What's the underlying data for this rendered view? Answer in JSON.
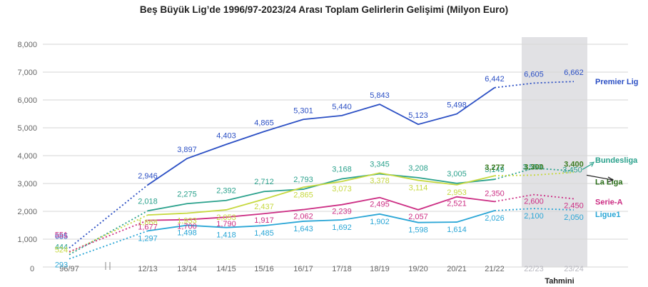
{
  "chart_data": {
    "type": "line",
    "title": "Beş Büyük Lig’de 1996/97-2023/24 Arası Toplam Gelirlerin Gelişimi (Milyon Euro)",
    "x_labels": [
      "96/97",
      "12/13",
      "13/14",
      "14/15",
      "15/16",
      "16/17",
      "17/18",
      "18/19",
      "19/20",
      "20/21",
      "21/22",
      "22/23",
      "23/24"
    ],
    "zero_label": "0",
    "y_ticks": [
      "8,000",
      "7,000",
      "6,000",
      "5,000",
      "4,000",
      "3,000",
      "2,000",
      "1,000"
    ],
    "ylim": [
      0,
      8000
    ],
    "grid": true,
    "estimate_columns": [
      "22/23",
      "23/24"
    ],
    "estimate_label": "Tahmini",
    "series": [
      {
        "name": "Premier Lig",
        "color": "#2b4fc4",
        "values": [
          685,
          2946,
          3897,
          4403,
          4865,
          5301,
          5440,
          5843,
          5123,
          5498,
          6442,
          6605,
          6662
        ],
        "labels": [
          "685",
          "2,946",
          "3,897",
          "4,403",
          "4,865",
          "5,301",
          "5,440",
          "5,843",
          "5,123",
          "5,498",
          "6,442",
          "6,605",
          "6,662"
        ]
      },
      {
        "name": "Bundesliga",
        "color": "#2aa18c",
        "values": [
          444,
          2018,
          2275,
          2392,
          2712,
          2793,
          3168,
          3345,
          3208,
          3005,
          3149,
          3550,
          3450
        ],
        "labels": [
          "444",
          "2,018",
          "2,275",
          "2,392",
          "2,712",
          "2,793",
          "3,168",
          "3,345",
          "3,208",
          "3,005",
          "3,149",
          "3,550",
          "3,450"
        ]
      },
      {
        "name": "La Liga",
        "color": "#c6d83e",
        "values": [
          524,
          1868,
          1933,
          2053,
          2437,
          2865,
          3073,
          3378,
          3114,
          2953,
          3277,
          3300,
          3400
        ],
        "labels": [
          "524",
          "1,868",
          "1,933",
          "2,053",
          "2,437",
          "2,865",
          "3,073",
          "3,378",
          "3,114",
          "2,953",
          "3,277",
          "3.300",
          "3.400"
        ]
      },
      {
        "name": "Serie-A",
        "color": "#cc2e84",
        "values": [
          551,
          1677,
          1700,
          1790,
          1917,
          2062,
          2239,
          2495,
          2057,
          2521,
          2350,
          2600,
          2450
        ],
        "labels": [
          "551",
          "1,677",
          "1,700",
          "1,790",
          "1,917",
          "2,062",
          "2,239",
          "2,495",
          "2,057",
          "2,521",
          "2,350",
          "2,600",
          "2,450"
        ]
      },
      {
        "name": "Ligue1",
        "color": "#2aa6d6",
        "values": [
          293,
          1297,
          1498,
          1418,
          1485,
          1643,
          1692,
          1902,
          1598,
          1614,
          2026,
          2100,
          2050
        ],
        "labels": [
          "293",
          "1,297",
          "1,498",
          "1,418",
          "1,485",
          "1,643",
          "1,692",
          "1,902",
          "1,598",
          "1,614",
          "2,026",
          "2,100",
          "2,050"
        ]
      }
    ]
  }
}
